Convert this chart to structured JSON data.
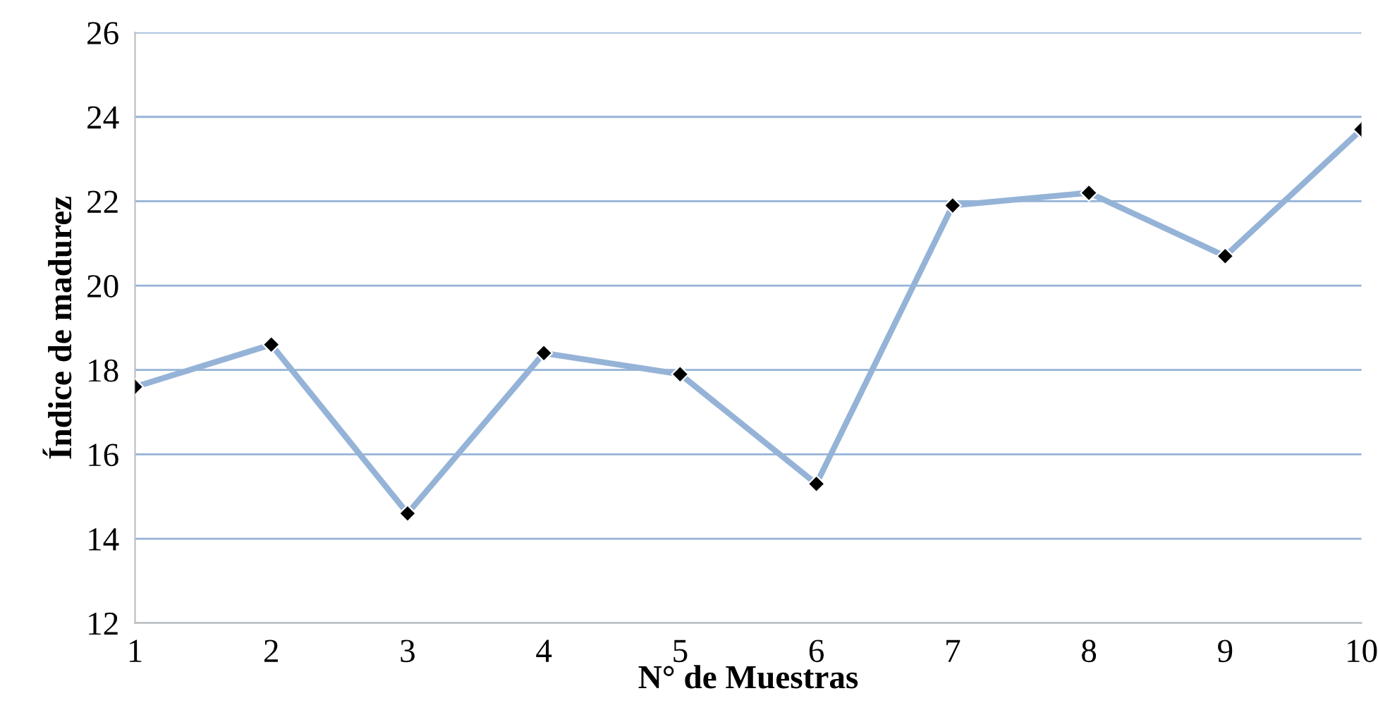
{
  "chart_data": {
    "type": "line",
    "xlabel": "N° de Muestras",
    "ylabel": "Índice de madurez",
    "x": [
      1,
      2,
      3,
      4,
      5,
      6,
      7,
      8,
      9,
      10
    ],
    "series": [
      {
        "color": "#95b3d7",
        "values": [
          17.6,
          18.6,
          14.6,
          18.4,
          17.9,
          15.3,
          21.9,
          22.2,
          20.7,
          23.7
        ]
      }
    ],
    "xlim": [
      1,
      10
    ],
    "xticks": [
      1,
      2,
      3,
      4,
      5,
      6,
      7,
      8,
      9,
      10
    ],
    "ylim": [
      12,
      26
    ],
    "yticks": [
      12,
      14,
      16,
      18,
      20,
      22,
      24,
      26
    ],
    "grid": "y",
    "marker": "diamond",
    "line_style": "solid",
    "legend": false
  }
}
